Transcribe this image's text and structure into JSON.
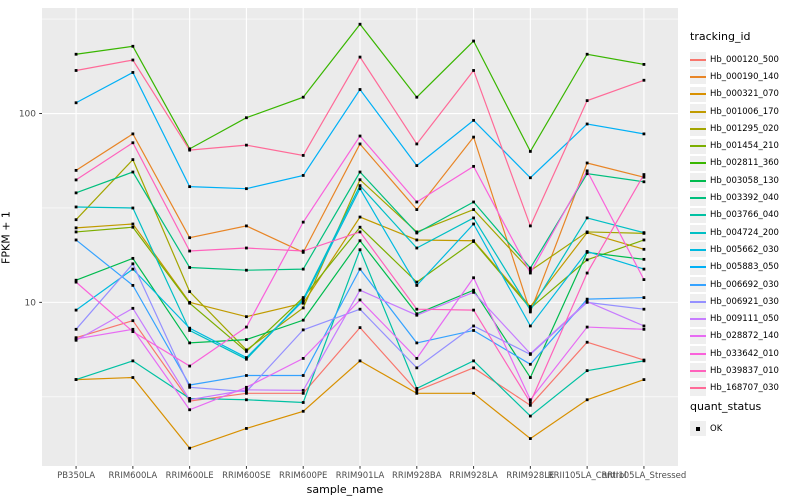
{
  "colors": {
    "page_background": "#ffffff",
    "panel_background": "#ebebeb",
    "gridline": "#ffffff",
    "tick_label": "#4d4d4d",
    "tick_mark": "#333333",
    "point": "#000000",
    "legend_key_background": "#efefef"
  },
  "chart_data": {
    "type": "line",
    "title": "",
    "xlabel": "sample_name",
    "ylabel": "FPKM + 1",
    "y_scale": "log10",
    "ylim": [
      1.36,
      362
    ],
    "y_major_ticks": [
      10,
      100
    ],
    "y_minor_ticks": [
      3.162,
      31.62,
      316.2
    ],
    "grid": true,
    "legend_position": "right",
    "legend_title": "tracking_id",
    "point_legend": {
      "title": "quant_status",
      "label": "OK"
    },
    "x_categories": [
      "PB350LA",
      "RRIM600LA",
      "RRIM600LE",
      "RRIM600SE",
      "RRIM600PE",
      "RRIM901LA",
      "RRIM928BA",
      "RRIM928LA",
      "RRIM928LE",
      "RRII105LA_Control",
      "RRII105LA_Stressed"
    ],
    "series": [
      {
        "name": "Hb_000120_500",
        "color": "#F8766D",
        "values": [
          6.5,
          8.0,
          3.0,
          3.3,
          3.3,
          7.35,
          3.4,
          4.5,
          2.85,
          6.15,
          4.95
        ]
      },
      {
        "name": "Hb_000190_140",
        "color": "#E88526",
        "values": [
          50,
          78,
          22,
          25.4,
          18.4,
          69,
          31,
          75,
          8.9,
          54.7,
          46
        ]
      },
      {
        "name": "Hb_000321_070",
        "color": "#D89000",
        "values": [
          3.9,
          4.0,
          1.69,
          2.15,
          2.65,
          4.9,
          3.3,
          3.3,
          1.9,
          3.05,
          3.9
        ]
      },
      {
        "name": "Hb_001006_170",
        "color": "#C09B00",
        "values": [
          24.8,
          26,
          10,
          8.4,
          9.9,
          28.3,
          21.4,
          21.2,
          9.5,
          23.4,
          19.1
        ]
      },
      {
        "name": "Hb_001295_020",
        "color": "#A3A500",
        "values": [
          27.4,
          57,
          11.4,
          5.6,
          9.35,
          44.6,
          23.6,
          31,
          14.7,
          23.6,
          23.2
        ]
      },
      {
        "name": "Hb_001454_210",
        "color": "#7CAE00",
        "values": [
          23.6,
          25,
          9.9,
          5.5,
          10.6,
          25,
          12.8,
          21,
          9.3,
          16.8,
          21.4
        ]
      },
      {
        "name": "Hb_002811_360",
        "color": "#39B600",
        "values": [
          206,
          227,
          65,
          95,
          122,
          297,
          122,
          242,
          63,
          206,
          182
        ]
      },
      {
        "name": "Hb_003058_130",
        "color": "#00BB4E",
        "values": [
          13.1,
          17.1,
          6.1,
          6.35,
          8.05,
          21.2,
          8.7,
          11.6,
          4.0,
          18.4,
          16.9
        ]
      },
      {
        "name": "Hb_003392_040",
        "color": "#00BF7D",
        "values": [
          38,
          49,
          15.3,
          14.8,
          15.0,
          49,
          23.3,
          34,
          15.2,
          48,
          43.5
        ]
      },
      {
        "name": "Hb_003766_040",
        "color": "#00C1A3",
        "values": [
          3.9,
          4.9,
          3.1,
          3.05,
          2.95,
          19,
          3.5,
          4.9,
          2.5,
          4.35,
          4.9
        ]
      },
      {
        "name": "Hb_004724_200",
        "color": "#00BFC4",
        "values": [
          32,
          31.6,
          7.1,
          5.0,
          10.4,
          41.5,
          19.4,
          28,
          9.1,
          28,
          23.4
        ]
      },
      {
        "name": "Hb_005662_030",
        "color": "#00BAE0",
        "values": [
          9.1,
          15.0,
          7.3,
          5.1,
          10.2,
          40,
          12.3,
          26,
          7.5,
          18.6,
          15.0
        ]
      },
      {
        "name": "Hb_005883_050",
        "color": "#00B0F6",
        "values": [
          114,
          165,
          41,
          40,
          47,
          134,
          53,
          92,
          45.7,
          88,
          78
        ]
      },
      {
        "name": "Hb_006692_030",
        "color": "#35A2FF",
        "values": [
          21.4,
          12.3,
          3.65,
          4.1,
          4.1,
          15,
          6.1,
          7.1,
          4.7,
          10.4,
          10.6
        ]
      },
      {
        "name": "Hb_006921_030",
        "color": "#9590FF",
        "values": [
          7.2,
          16.0,
          3.55,
          3.37,
          7.15,
          9.2,
          4.5,
          7.5,
          5.3,
          10.0,
          9.2
        ]
      },
      {
        "name": "Hb_009111_050",
        "color": "#C77CFF",
        "values": [
          6.3,
          9.3,
          3.05,
          3.44,
          3.42,
          11.6,
          8.55,
          11.3,
          5.35,
          10.1,
          7.5
        ]
      },
      {
        "name": "Hb_028872_140",
        "color": "#E76BF3",
        "values": [
          6.4,
          7.2,
          2.7,
          3.55,
          5.05,
          10.3,
          5.05,
          13.5,
          3.05,
          7.4,
          7.2
        ]
      },
      {
        "name": "Hb_033642_010",
        "color": "#FA62DB",
        "values": [
          12.8,
          7.0,
          4.6,
          7.4,
          26.6,
          76,
          34,
          52.5,
          14.3,
          49.7,
          13.2
        ]
      },
      {
        "name": "Hb_039837_010",
        "color": "#FF62BC",
        "values": [
          44.5,
          70,
          18.7,
          19.4,
          18.7,
          23.6,
          9.2,
          9.1,
          2.95,
          14.3,
          47.5
        ]
      },
      {
        "name": "Hb_168707_030",
        "color": "#FF6A98",
        "values": [
          169,
          192,
          64,
          68,
          60,
          199,
          69,
          169,
          25.4,
          117,
          150
        ]
      }
    ]
  }
}
